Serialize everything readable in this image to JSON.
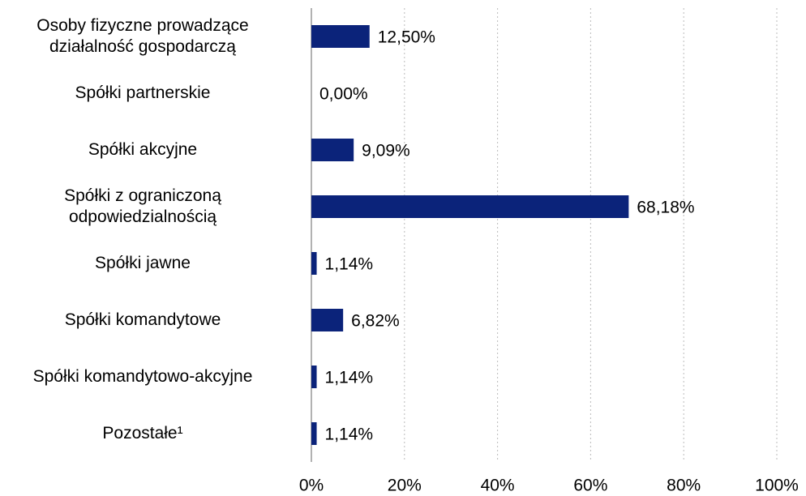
{
  "chart_data": {
    "type": "bar",
    "orientation": "horizontal",
    "categories": [
      "Osoby fizyczne prowadzące\ndziałalność gospodarczą",
      "Spółki partnerskie",
      "Spółki akcyjne",
      "Spółki z ograniczoną\nodpowiedzialnością",
      "Spółki jawne",
      "Spółki komandytowe",
      "Spółki komandytowo-akcyjne",
      "Pozostałe¹"
    ],
    "values": [
      12.5,
      0,
      9.09,
      68.18,
      1.14,
      6.82,
      1.14,
      1.14
    ],
    "value_labels": [
      "12,50%",
      "0,00%",
      "9,09%",
      "68,18%",
      "1,14%",
      "6,82%",
      "1,14%",
      "1,14%"
    ],
    "color": "#0b237a",
    "xlim": [
      0,
      100
    ],
    "xticks": [
      {
        "value": 0,
        "label": "0%"
      },
      {
        "value": 20,
        "label": "20%"
      },
      {
        "value": 40,
        "label": "40%"
      },
      {
        "value": 60,
        "label": "60%"
      },
      {
        "value": 80,
        "label": "80%"
      },
      {
        "value": 100,
        "label": "100%"
      }
    ],
    "grid": true
  }
}
